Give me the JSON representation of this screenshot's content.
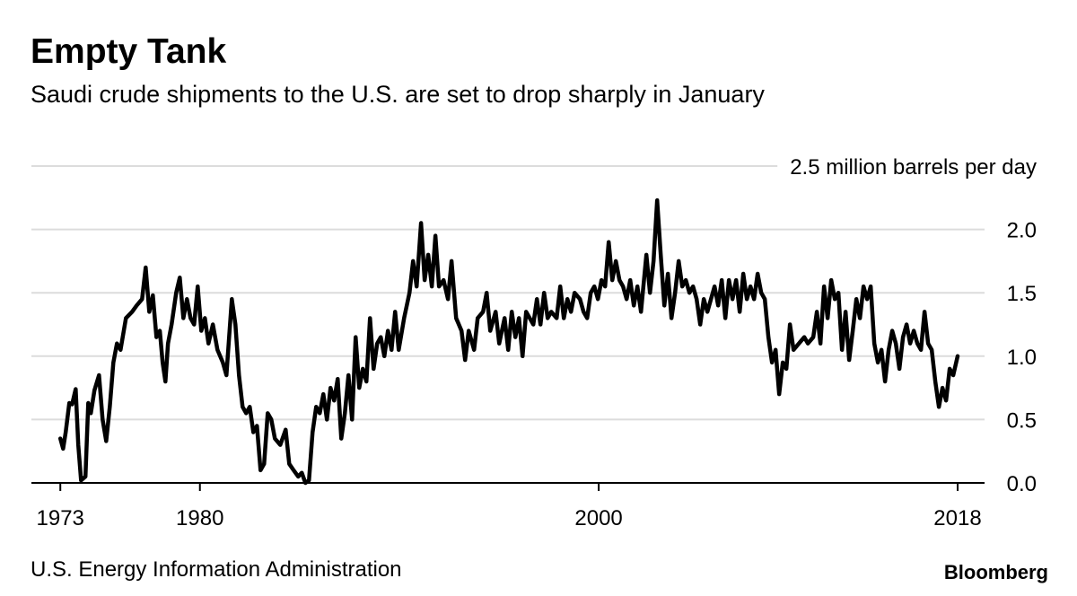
{
  "chart_data": {
    "type": "line",
    "title": "Empty Tank",
    "subtitle": "Saudi crude shipments to the U.S. are set to drop sharply in January",
    "source": "U.S. Energy Information Administration",
    "credit": "Bloomberg",
    "x": [
      1973.0,
      1973.14,
      1973.27,
      1973.45,
      1973.59,
      1973.77,
      1973.9,
      1974.04,
      1974.26,
      1974.4,
      1974.53,
      1974.71,
      1974.94,
      1975.12,
      1975.3,
      1975.48,
      1975.66,
      1975.84,
      1976.02,
      1976.29,
      1976.6,
      1976.83,
      1977.1,
      1977.28,
      1977.46,
      1977.64,
      1977.82,
      1977.99,
      1978.13,
      1978.27,
      1978.4,
      1978.58,
      1978.81,
      1978.99,
      1979.17,
      1979.35,
      1979.53,
      1979.71,
      1979.89,
      1980.07,
      1980.25,
      1980.43,
      1980.65,
      1980.88,
      1981.15,
      1981.33,
      1981.6,
      1981.78,
      1981.96,
      1982.14,
      1982.32,
      1982.5,
      1982.68,
      1982.86,
      1983.04,
      1983.22,
      1983.4,
      1983.58,
      1983.76,
      1984.03,
      1984.3,
      1984.48,
      1984.7,
      1984.93,
      1985.11,
      1985.29,
      1985.47,
      1985.65,
      1985.83,
      1986.01,
      1986.19,
      1986.37,
      1986.55,
      1986.73,
      1986.91,
      1987.09,
      1987.27,
      1987.45,
      1987.63,
      1987.81,
      1987.99,
      1988.17,
      1988.35,
      1988.53,
      1988.71,
      1988.89,
      1989.07,
      1989.25,
      1989.43,
      1989.61,
      1989.79,
      1989.97,
      1990.24,
      1990.51,
      1990.69,
      1990.87,
      1991.09,
      1991.27,
      1991.45,
      1991.63,
      1991.81,
      1991.99,
      1992.22,
      1992.44,
      1992.62,
      1992.85,
      1993.12,
      1993.3,
      1993.48,
      1993.75,
      1993.93,
      1994.2,
      1994.38,
      1994.56,
      1994.83,
      1995.01,
      1995.28,
      1995.46,
      1995.64,
      1995.82,
      1996.0,
      1996.18,
      1996.36,
      1996.54,
      1996.72,
      1996.9,
      1997.08,
      1997.26,
      1997.44,
      1997.62,
      1997.89,
      1998.07,
      1998.25,
      1998.43,
      1998.61,
      1998.79,
      1999.06,
      1999.24,
      1999.42,
      1999.6,
      1999.78,
      1999.96,
      2000.14,
      2000.32,
      2000.5,
      2000.68,
      2000.86,
      2001.04,
      2001.22,
      2001.4,
      2001.58,
      2001.76,
      2001.94,
      2002.12,
      2002.39,
      2002.57,
      2002.75,
      2002.93,
      2003.11,
      2003.29,
      2003.47,
      2003.65,
      2003.83,
      2004.01,
      2004.19,
      2004.37,
      2004.55,
      2004.73,
      2004.91,
      2005.09,
      2005.27,
      2005.45,
      2005.63,
      2005.81,
      2005.99,
      2006.17,
      2006.35,
      2006.53,
      2006.71,
      2006.89,
      2007.07,
      2007.25,
      2007.43,
      2007.61,
      2007.79,
      2007.97,
      2008.15,
      2008.33,
      2008.51,
      2008.69,
      2008.87,
      2009.05,
      2009.23,
      2009.41,
      2009.59,
      2009.77,
      2010.04,
      2010.31,
      2010.49,
      2010.76,
      2010.94,
      2011.12,
      2011.3,
      2011.48,
      2011.66,
      2011.84,
      2012.02,
      2012.2,
      2012.38,
      2012.56,
      2012.74,
      2012.92,
      2013.1,
      2013.28,
      2013.46,
      2013.64,
      2013.82,
      2014.0,
      2014.18,
      2014.36,
      2014.54,
      2014.72,
      2014.9,
      2015.08,
      2015.26,
      2015.44,
      2015.62,
      2015.8,
      2015.98,
      2016.16,
      2016.34,
      2016.52,
      2016.7,
      2016.88,
      2017.06,
      2017.24,
      2017.42,
      2017.6,
      2017.78,
      2018.0
    ],
    "series": [
      {
        "color": "#000000",
        "values": [
          0.35,
          0.27,
          0.4,
          0.63,
          0.62,
          0.74,
          0.3,
          0.02,
          0.05,
          0.63,
          0.55,
          0.73,
          0.85,
          0.5,
          0.33,
          0.6,
          0.95,
          1.1,
          1.05,
          1.3,
          1.35,
          1.4,
          1.45,
          1.7,
          1.35,
          1.48,
          1.15,
          1.2,
          0.95,
          0.8,
          1.1,
          1.25,
          1.5,
          1.62,
          1.3,
          1.45,
          1.3,
          1.25,
          1.55,
          1.2,
          1.3,
          1.1,
          1.25,
          1.05,
          0.95,
          0.85,
          1.45,
          1.25,
          0.85,
          0.6,
          0.55,
          0.6,
          0.4,
          0.45,
          0.1,
          0.15,
          0.55,
          0.5,
          0.35,
          0.3,
          0.42,
          0.15,
          0.1,
          0.05,
          0.08,
          0.0,
          0.02,
          0.4,
          0.6,
          0.55,
          0.7,
          0.5,
          0.75,
          0.65,
          0.82,
          0.35,
          0.55,
          0.85,
          0.5,
          1.15,
          0.75,
          0.9,
          0.8,
          1.3,
          0.9,
          1.1,
          1.15,
          1.0,
          1.2,
          1.05,
          1.35,
          1.05,
          1.3,
          1.5,
          1.75,
          1.55,
          2.05,
          1.6,
          1.8,
          1.55,
          1.95,
          1.55,
          1.6,
          1.45,
          1.75,
          1.3,
          1.2,
          0.97,
          1.2,
          1.05,
          1.3,
          1.35,
          1.5,
          1.2,
          1.35,
          1.1,
          1.3,
          1.05,
          1.35,
          1.15,
          1.3,
          1.0,
          1.35,
          1.3,
          1.25,
          1.45,
          1.25,
          1.5,
          1.3,
          1.35,
          1.3,
          1.55,
          1.3,
          1.45,
          1.35,
          1.5,
          1.45,
          1.35,
          1.3,
          1.5,
          1.55,
          1.45,
          1.6,
          1.55,
          1.9,
          1.6,
          1.75,
          1.6,
          1.55,
          1.45,
          1.6,
          1.4,
          1.55,
          1.35,
          1.8,
          1.5,
          1.75,
          2.23,
          1.8,
          1.4,
          1.65,
          1.3,
          1.5,
          1.75,
          1.55,
          1.6,
          1.5,
          1.55,
          1.45,
          1.25,
          1.45,
          1.35,
          1.45,
          1.55,
          1.4,
          1.6,
          1.3,
          1.6,
          1.45,
          1.6,
          1.35,
          1.65,
          1.45,
          1.55,
          1.45,
          1.65,
          1.5,
          1.45,
          1.15,
          0.95,
          1.05,
          0.7,
          0.95,
          0.9,
          1.25,
          1.05,
          1.1,
          1.15,
          1.1,
          1.15,
          1.35,
          1.1,
          1.55,
          1.3,
          1.6,
          1.45,
          1.5,
          1.05,
          1.35,
          0.97,
          1.2,
          1.45,
          1.3,
          1.55,
          1.45,
          1.55,
          1.1,
          0.95,
          1.05,
          0.8,
          1.05,
          1.2,
          1.1,
          0.9,
          1.15,
          1.25,
          1.1,
          1.2,
          1.1,
          1.05,
          1.35,
          1.1,
          1.05,
          0.8,
          0.6,
          0.75,
          0.65,
          0.9,
          0.85,
          1.0
        ]
      }
    ],
    "xlim": [
      1971.55,
      2019.35
    ],
    "xticks": [
      1973,
      1980,
      2000,
      2018
    ],
    "ylim": [
      0,
      2.5
    ],
    "yticks": [
      {
        "value": 0,
        "label": "0.0"
      },
      {
        "value": 0.5,
        "label": "0.5"
      },
      {
        "value": 1,
        "label": "1.0"
      },
      {
        "value": 1.5,
        "label": "1.5"
      },
      {
        "value": 2,
        "label": "2.0"
      },
      {
        "value": 2.5,
        "label": "2.5 million barrels per day"
      }
    ],
    "grid": true
  }
}
